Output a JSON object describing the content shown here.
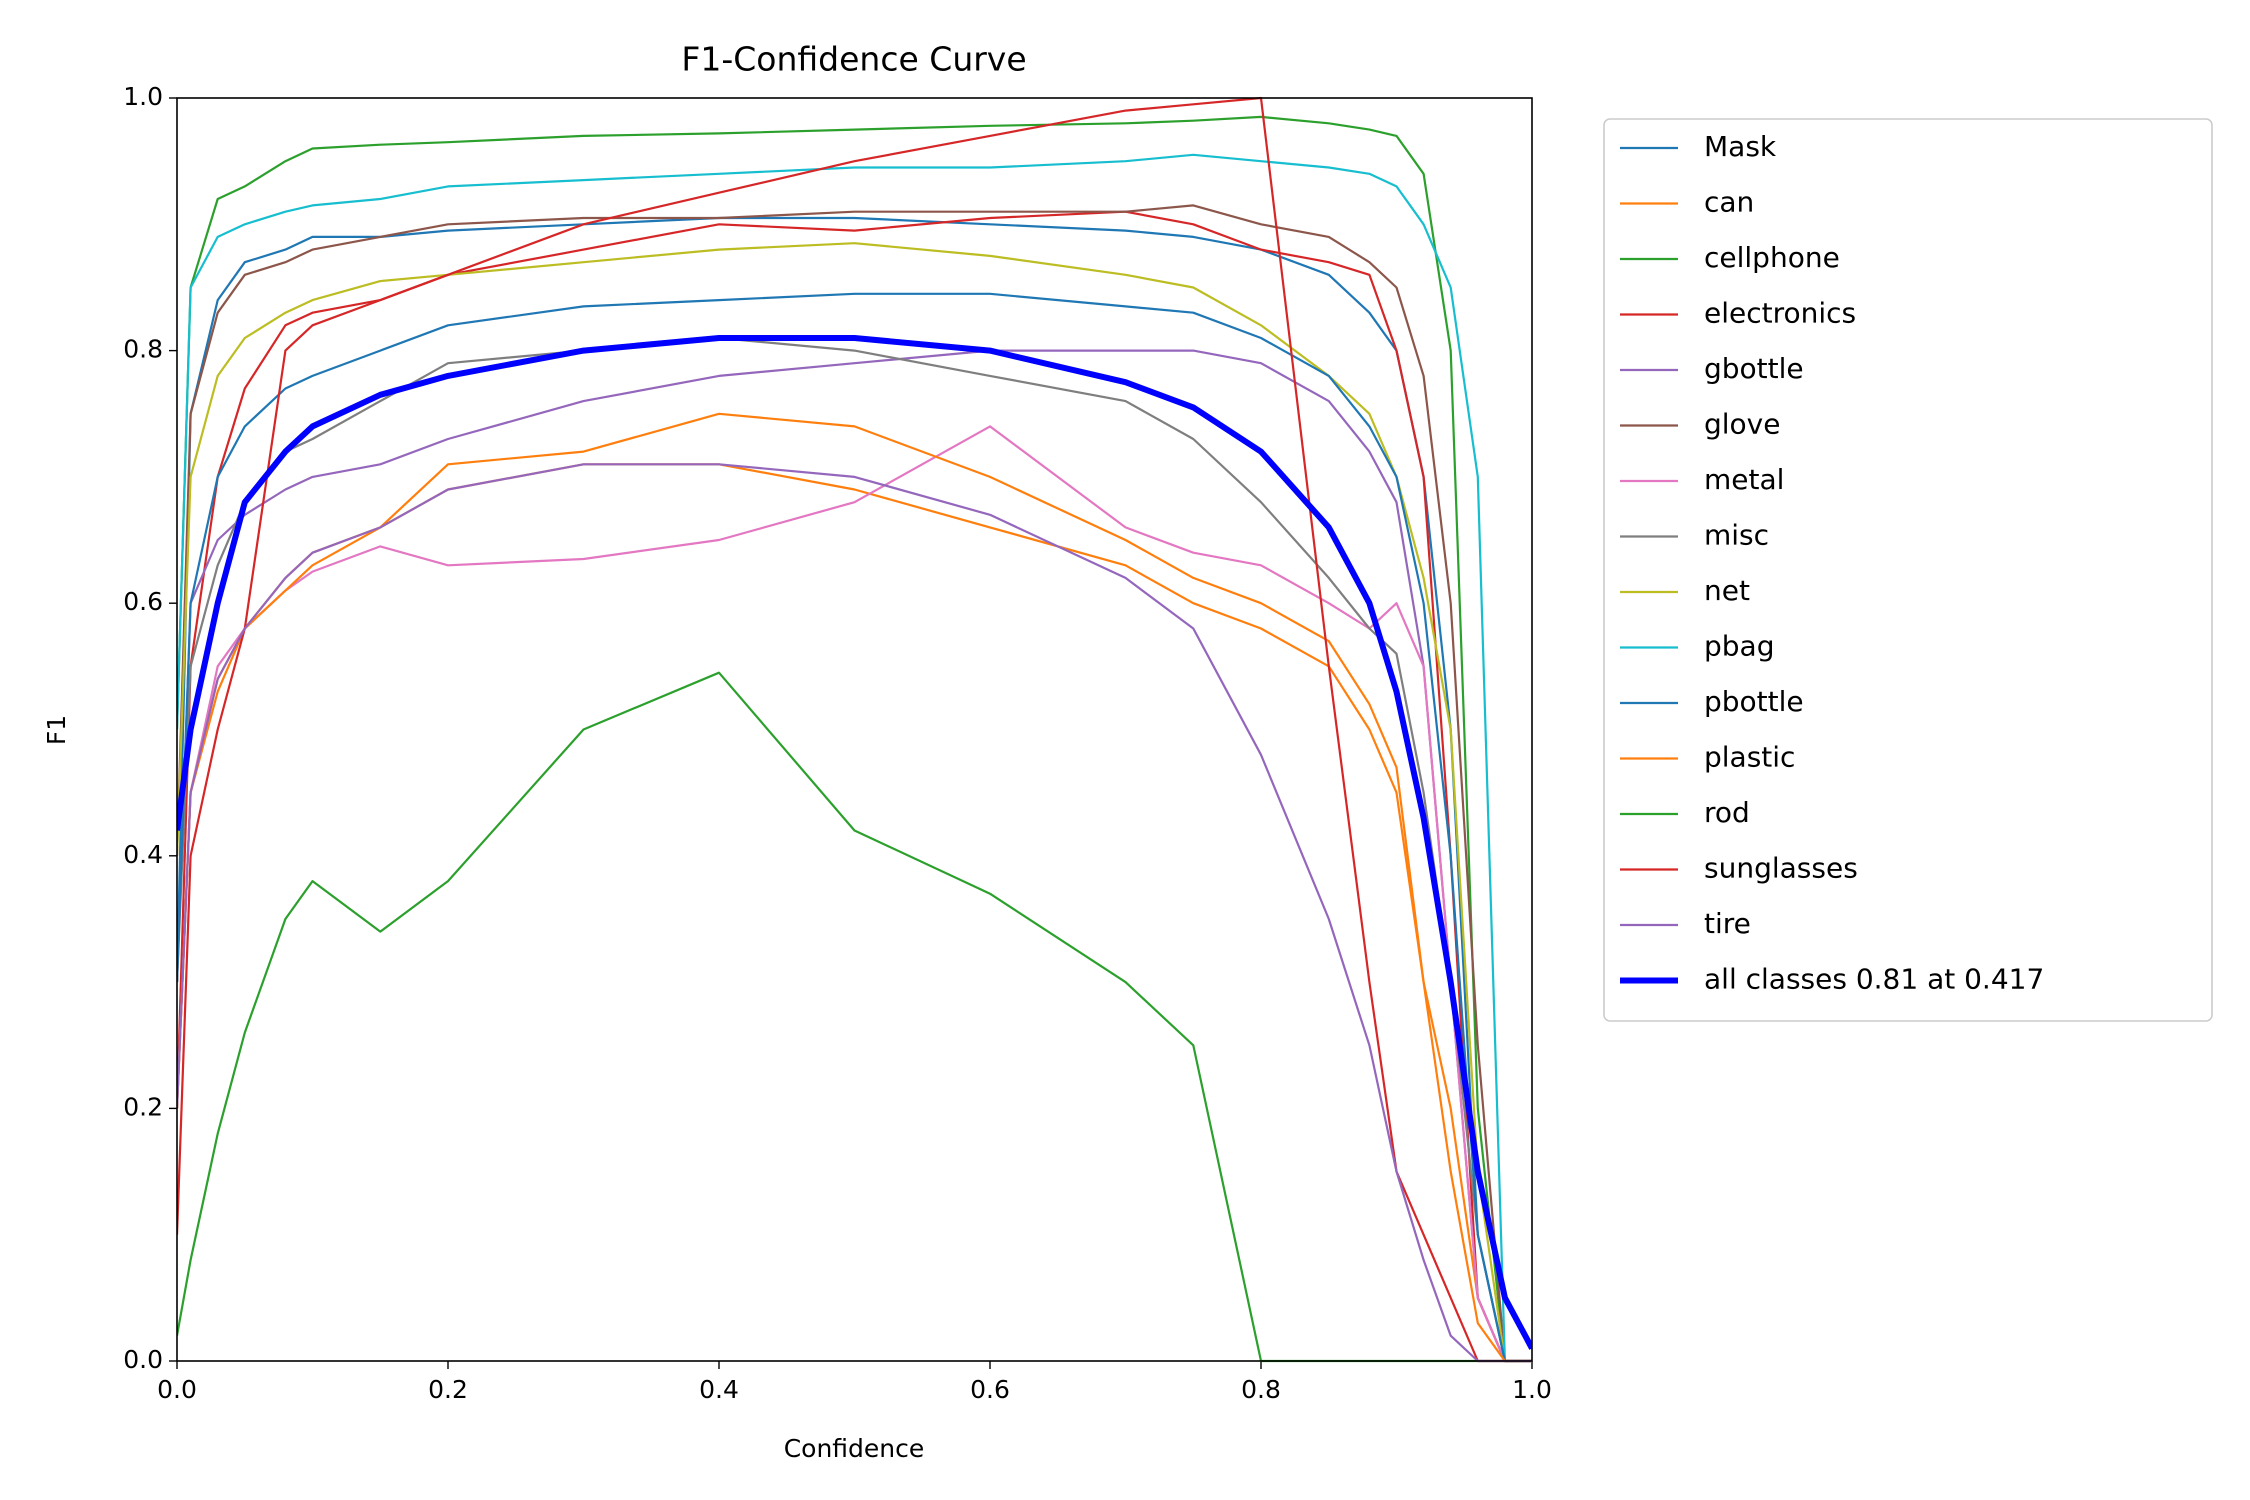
{
  "chart_data": {
    "type": "line",
    "title": "F1-Confidence Curve",
    "x_label": "Confidence",
    "y_label": "F1",
    "x": [
      0,
      0.01,
      0.03,
      0.05,
      0.08,
      0.1,
      0.15,
      0.2,
      0.3,
      0.4,
      0.5,
      0.6,
      0.7,
      0.75,
      0.8,
      0.85,
      0.88,
      0.9,
      0.92,
      0.94,
      0.96,
      0.98,
      1.0
    ],
    "xlim": [
      0,
      1
    ],
    "ylim": [
      0,
      1
    ],
    "xticks": [
      {
        "value": 0,
        "label": "0.0"
      },
      0.2,
      0.4,
      0.6,
      0.8,
      {
        "value": 1,
        "label": "1.0"
      }
    ],
    "yticks": [
      {
        "value": 0,
        "label": "0.0"
      },
      0.2,
      0.4,
      0.6,
      0.8,
      {
        "value": 1,
        "label": "1.0"
      }
    ],
    "legend": "outside-upper-right",
    "series": [
      {
        "name": "Mask",
        "color": "#1f77b4",
        "values": [
          0.3,
          0.75,
          0.84,
          0.87,
          0.88,
          0.89,
          0.89,
          0.895,
          0.9,
          0.905,
          0.905,
          0.9,
          0.895,
          0.89,
          0.88,
          0.86,
          0.83,
          0.8,
          0.7,
          0.5,
          0.1,
          0,
          0
        ]
      },
      {
        "name": "can",
        "color": "#ff7f0e",
        "values": [
          0.2,
          0.45,
          0.53,
          0.58,
          0.62,
          0.64,
          0.66,
          0.69,
          0.71,
          0.71,
          0.69,
          0.66,
          0.63,
          0.6,
          0.58,
          0.55,
          0.5,
          0.45,
          0.3,
          0.2,
          0.05,
          0,
          0
        ]
      },
      {
        "name": "cellphone",
        "color": "#2ca02c",
        "values": [
          0.5,
          0.85,
          0.92,
          0.93,
          0.95,
          0.96,
          0.963,
          0.965,
          0.97,
          0.972,
          0.975,
          0.978,
          0.98,
          0.982,
          0.985,
          0.98,
          0.975,
          0.97,
          0.94,
          0.8,
          0.2,
          0,
          0
        ]
      },
      {
        "name": "electronics",
        "color": "#d62728",
        "values": [
          0.2,
          0.55,
          0.7,
          0.77,
          0.82,
          0.83,
          0.84,
          0.86,
          0.88,
          0.9,
          0.895,
          0.905,
          0.91,
          0.9,
          0.88,
          0.87,
          0.86,
          0.8,
          0.7,
          0.4,
          0.05,
          0,
          0
        ]
      },
      {
        "name": "gbottle",
        "color": "#9467bd",
        "values": [
          0.3,
          0.6,
          0.65,
          0.67,
          0.69,
          0.7,
          0.71,
          0.73,
          0.76,
          0.78,
          0.79,
          0.8,
          0.8,
          0.8,
          0.79,
          0.76,
          0.72,
          0.68,
          0.55,
          0.3,
          0.05,
          0,
          0
        ]
      },
      {
        "name": "glove",
        "color": "#8c564b",
        "values": [
          0.4,
          0.75,
          0.83,
          0.86,
          0.87,
          0.88,
          0.89,
          0.9,
          0.905,
          0.905,
          0.91,
          0.91,
          0.91,
          0.915,
          0.9,
          0.89,
          0.87,
          0.85,
          0.78,
          0.6,
          0.25,
          0,
          0
        ]
      },
      {
        "name": "metal",
        "color": "#e377c2",
        "values": [
          0.2,
          0.45,
          0.55,
          0.58,
          0.61,
          0.625,
          0.645,
          0.63,
          0.635,
          0.65,
          0.68,
          0.74,
          0.66,
          0.64,
          0.63,
          0.6,
          0.58,
          0.6,
          0.55,
          0.3,
          0.05,
          0,
          0
        ]
      },
      {
        "name": "misc",
        "color": "#7f7f7f",
        "values": [
          0.3,
          0.55,
          0.63,
          0.68,
          0.72,
          0.73,
          0.76,
          0.79,
          0.8,
          0.81,
          0.8,
          0.78,
          0.76,
          0.73,
          0.68,
          0.62,
          0.58,
          0.56,
          0.45,
          0.3,
          0.1,
          0,
          0
        ]
      },
      {
        "name": "net",
        "color": "#bcbd22",
        "values": [
          0.4,
          0.7,
          0.78,
          0.81,
          0.83,
          0.84,
          0.855,
          0.86,
          0.87,
          0.88,
          0.885,
          0.875,
          0.86,
          0.85,
          0.82,
          0.78,
          0.75,
          0.7,
          0.62,
          0.5,
          0.15,
          0,
          0
        ]
      },
      {
        "name": "pbag",
        "color": "#17becf",
        "values": [
          0.5,
          0.85,
          0.89,
          0.9,
          0.91,
          0.915,
          0.92,
          0.93,
          0.935,
          0.94,
          0.945,
          0.945,
          0.95,
          0.955,
          0.95,
          0.945,
          0.94,
          0.93,
          0.9,
          0.85,
          0.7,
          0,
          0
        ]
      },
      {
        "name": "pbottle",
        "color": "#1f77b4",
        "values": [
          0.3,
          0.6,
          0.7,
          0.74,
          0.77,
          0.78,
          0.8,
          0.82,
          0.835,
          0.84,
          0.845,
          0.845,
          0.835,
          0.83,
          0.81,
          0.78,
          0.74,
          0.7,
          0.6,
          0.4,
          0.1,
          0,
          0
        ]
      },
      {
        "name": "plastic",
        "color": "#ff7f0e",
        "values": [
          0.2,
          0.45,
          0.54,
          0.58,
          0.61,
          0.63,
          0.66,
          0.71,
          0.72,
          0.75,
          0.74,
          0.7,
          0.65,
          0.62,
          0.6,
          0.57,
          0.52,
          0.47,
          0.3,
          0.15,
          0.03,
          0,
          0
        ]
      },
      {
        "name": "rod",
        "color": "#2ca02c",
        "values": [
          0.02,
          0.08,
          0.18,
          0.26,
          0.35,
          0.38,
          0.34,
          0.38,
          0.5,
          0.545,
          0.42,
          0.37,
          0.3,
          0.25,
          0,
          0,
          0,
          0,
          0,
          0,
          0,
          0,
          0
        ]
      },
      {
        "name": "sunglasses",
        "color": "#d62728",
        "values": [
          0.1,
          0.4,
          0.5,
          0.58,
          0.8,
          0.82,
          0.84,
          0.86,
          0.9,
          0.925,
          0.95,
          0.97,
          0.99,
          0.995,
          1.0,
          0.55,
          0.3,
          0.15,
          0.1,
          0.05,
          0,
          0,
          0
        ]
      },
      {
        "name": "tire",
        "color": "#9467bd",
        "values": [
          0.2,
          0.45,
          0.54,
          0.58,
          0.62,
          0.64,
          0.66,
          0.69,
          0.71,
          0.71,
          0.7,
          0.67,
          0.62,
          0.58,
          0.48,
          0.35,
          0.25,
          0.15,
          0.08,
          0.02,
          0,
          0,
          0
        ]
      },
      {
        "name": "all classes 0.81 at 0.417",
        "color": "#0000ff",
        "width": 6,
        "values": [
          0.42,
          0.5,
          0.6,
          0.68,
          0.72,
          0.74,
          0.765,
          0.78,
          0.8,
          0.81,
          0.81,
          0.8,
          0.775,
          0.755,
          0.72,
          0.66,
          0.6,
          0.53,
          0.43,
          0.3,
          0.15,
          0.05,
          0.01
        ]
      }
    ]
  }
}
